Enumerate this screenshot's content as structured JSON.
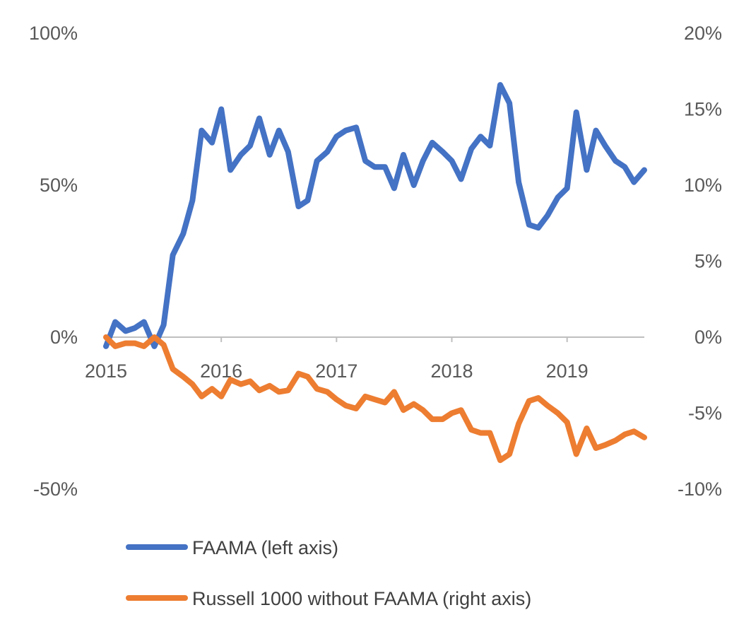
{
  "chart_data": {
    "type": "line",
    "title": "",
    "xlabel": "",
    "ylabel": "",
    "x_ticks": [
      "2015",
      "2016",
      "2017",
      "2018",
      "2019"
    ],
    "x_range": [
      2015.0,
      2019.67
    ],
    "y_left_ticks": [
      "100%",
      "50%",
      "0%",
      "-50%"
    ],
    "y_left_range": [
      -50,
      100
    ],
    "y_right_ticks": [
      "20%",
      "15%",
      "10%",
      "5%",
      "0%",
      "-5%",
      "-10%"
    ],
    "y_right_range": [
      -10,
      20
    ],
    "grid": false,
    "legend_position": "bottom",
    "series": [
      {
        "name": "FAAMA (left axis)",
        "axis": "left",
        "color": "#4472C4",
        "x": [
          2015.0,
          2015.08,
          2015.17,
          2015.25,
          2015.33,
          2015.42,
          2015.5,
          2015.58,
          2015.67,
          2015.75,
          2015.83,
          2015.92,
          2016.0,
          2016.08,
          2016.17,
          2016.25,
          2016.33,
          2016.42,
          2016.5,
          2016.58,
          2016.67,
          2016.75,
          2016.83,
          2016.92,
          2017.0,
          2017.08,
          2017.17,
          2017.25,
          2017.33,
          2017.42,
          2017.5,
          2017.58,
          2017.67,
          2017.75,
          2017.83,
          2017.92,
          2018.0,
          2018.08,
          2018.17,
          2018.25,
          2018.33,
          2018.42,
          2018.5,
          2018.58,
          2018.67,
          2018.75,
          2018.83,
          2018.92,
          2019.0,
          2019.08,
          2019.17,
          2019.25,
          2019.33,
          2019.42,
          2019.5,
          2019.58,
          2019.67
        ],
        "values": [
          -3,
          5,
          2,
          3,
          5,
          -3,
          4,
          27,
          34,
          45,
          68,
          64,
          75,
          55,
          60,
          63,
          72,
          60,
          68,
          61,
          43,
          45,
          58,
          61,
          66,
          68,
          69,
          58,
          56,
          56,
          49,
          60,
          50,
          58,
          64,
          61,
          58,
          52,
          62,
          66,
          63,
          83,
          77,
          51,
          37,
          36,
          40,
          46,
          49,
          74,
          55,
          68,
          63,
          58,
          56,
          51,
          55
        ]
      },
      {
        "name": "Russell 1000 without FAAMA (right axis)",
        "axis": "right",
        "color": "#ED7D31",
        "x": [
          2015.0,
          2015.08,
          2015.17,
          2015.25,
          2015.33,
          2015.42,
          2015.5,
          2015.58,
          2015.67,
          2015.75,
          2015.83,
          2015.92,
          2016.0,
          2016.08,
          2016.17,
          2016.25,
          2016.33,
          2016.42,
          2016.5,
          2016.58,
          2016.67,
          2016.75,
          2016.83,
          2016.92,
          2017.0,
          2017.08,
          2017.17,
          2017.25,
          2017.33,
          2017.42,
          2017.5,
          2017.58,
          2017.67,
          2017.75,
          2017.83,
          2017.92,
          2018.0,
          2018.08,
          2018.17,
          2018.25,
          2018.33,
          2018.42,
          2018.5,
          2018.58,
          2018.67,
          2018.75,
          2018.83,
          2018.92,
          2019.0,
          2019.08,
          2019.17,
          2019.25,
          2019.33,
          2019.42,
          2019.5,
          2019.58,
          2019.67
        ],
        "values": [
          0,
          -0.6,
          -0.4,
          -0.4,
          -0.6,
          0,
          -0.5,
          -2.1,
          -2.6,
          -3.1,
          -3.9,
          -3.4,
          -3.9,
          -2.8,
          -3.1,
          -2.9,
          -3.5,
          -3.2,
          -3.6,
          -3.5,
          -2.4,
          -2.6,
          -3.4,
          -3.6,
          -4.1,
          -4.5,
          -4.7,
          -3.9,
          -4.1,
          -4.3,
          -3.6,
          -4.8,
          -4.4,
          -4.8,
          -5.4,
          -5.4,
          -5.0,
          -4.8,
          -6.1,
          -6.3,
          -6.3,
          -8.1,
          -7.7,
          -5.7,
          -4.2,
          -4.0,
          -4.5,
          -5.0,
          -5.6,
          -7.7,
          -6.0,
          -7.3,
          -7.1,
          -6.8,
          -6.4,
          -6.2,
          -6.6
        ]
      }
    ]
  }
}
